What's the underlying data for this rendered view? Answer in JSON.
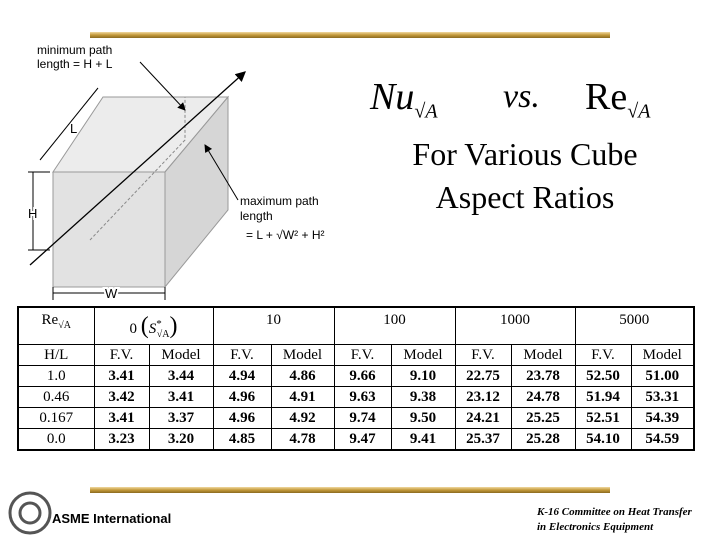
{
  "header": {
    "title": {
      "nu": "Nu",
      "nu_sub": "√A",
      "vs": "vs.",
      "re": "Re",
      "re_sub": "√A",
      "line2": "For Various Cube",
      "line3": "Aspect Ratios"
    }
  },
  "diagram": {
    "min_label": [
      "minimum path",
      "length = H + L"
    ],
    "max_label": [
      "maximum path",
      "length",
      "= L + √W² + H²"
    ],
    "dims": {
      "L": "L",
      "H": "H",
      "W": "W"
    }
  },
  "table": {
    "group_header": {
      "re": "Re",
      "re_sub": "√A",
      "zero": "0",
      "open": "(",
      "s": "S",
      "star": "*",
      "s_sub": "√A",
      "close": ")",
      "groups": [
        "10",
        "100",
        "1000",
        "5000"
      ]
    },
    "col_header": [
      "H/L",
      "F.V.",
      "Model",
      "F.V.",
      "Model",
      "F.V.",
      "Model",
      "F.V.",
      "Model",
      "F.V.",
      "Model"
    ],
    "rows": [
      [
        "1.0",
        "3.41",
        "3.44",
        "4.94",
        "4.86",
        "9.66",
        "9.10",
        "22.75",
        "23.78",
        "52.50",
        "51.00"
      ],
      [
        "0.46",
        "3.42",
        "3.41",
        "4.96",
        "4.91",
        "9.63",
        "9.38",
        "23.12",
        "24.78",
        "51.94",
        "53.31"
      ],
      [
        "0.167",
        "3.41",
        "3.37",
        "4.96",
        "4.92",
        "9.74",
        "9.50",
        "24.21",
        "25.25",
        "52.51",
        "54.39"
      ],
      [
        "0.0",
        "3.23",
        "3.20",
        "4.85",
        "4.78",
        "9.47",
        "9.41",
        "25.37",
        "25.28",
        "54.10",
        "54.59"
      ]
    ]
  },
  "footer": {
    "org": "ASME International",
    "committee": [
      "K-16 Committee on Heat Transfer",
      "in Electronics Equipment"
    ]
  }
}
